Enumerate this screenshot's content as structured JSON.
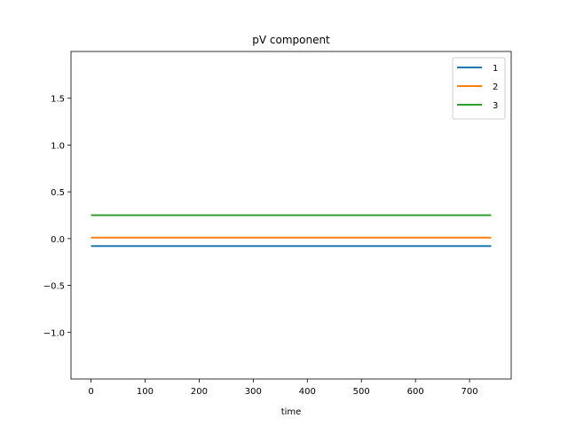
{
  "chart_data": {
    "type": "line",
    "title": "pV component",
    "xlabel": "time",
    "ylabel": "",
    "xlim": [
      -37,
      777
    ],
    "ylim": [
      -1.5,
      2.0
    ],
    "xticks": [
      0,
      100,
      200,
      300,
      400,
      500,
      600,
      700
    ],
    "xtick_labels": [
      "0",
      "100",
      "200",
      "300",
      "400",
      "500",
      "600",
      "700"
    ],
    "yticks": [
      -1.0,
      -0.5,
      0.0,
      0.5,
      1.0,
      1.5
    ],
    "ytick_labels": [
      "−1.0",
      "−0.5",
      "0.0",
      "0.5",
      "1.0",
      "1.5"
    ],
    "grid": false,
    "legend_position": "top-right",
    "series": [
      {
        "name": "1",
        "color": "#1f77b4",
        "x": [
          0,
          740
        ],
        "values": [
          -0.08,
          -0.08
        ]
      },
      {
        "name": "2",
        "color": "#ff7f0e",
        "x": [
          0,
          740
        ],
        "values": [
          0.01,
          0.01
        ]
      },
      {
        "name": "3",
        "color": "#2ca02c",
        "x": [
          0,
          740
        ],
        "values": [
          0.25,
          0.25
        ]
      }
    ]
  }
}
